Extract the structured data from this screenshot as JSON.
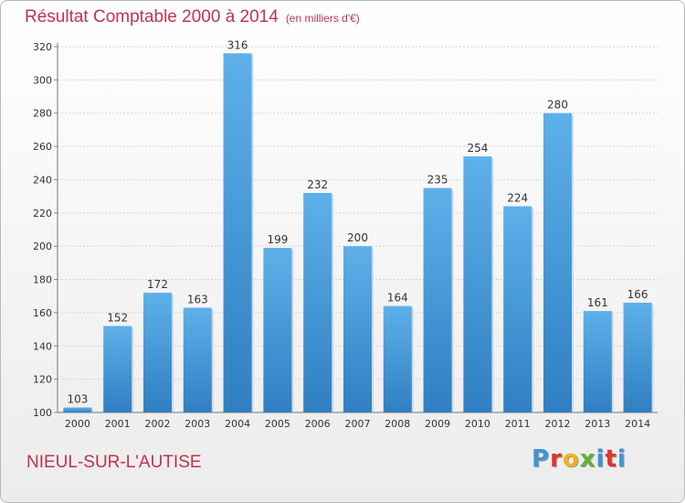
{
  "header": {
    "title": "Résultat Comptable 2000 à 2014",
    "unit": "(en milliers d'€)"
  },
  "footer": {
    "commune": "NIEUL-SUR-L'AUTISE",
    "logo": "Proxiti"
  },
  "colors": {
    "title": "#c0334d",
    "bar_top": "#5eb0ea",
    "bar_bottom": "#2f7fc2",
    "logo_letters": [
      "#3f95d6",
      "#e2332e",
      "#f2b11d",
      "#5fb13b",
      "#3f95d6",
      "#e2332e",
      "#3f95d6"
    ]
  },
  "chart_data": {
    "type": "bar",
    "title": "Résultat Comptable 2000 à 2014",
    "xlabel": "",
    "ylabel": "",
    "categories": [
      "2000",
      "2001",
      "2002",
      "2003",
      "2004",
      "2005",
      "2006",
      "2007",
      "2008",
      "2009",
      "2010",
      "2011",
      "2012",
      "2013",
      "2014"
    ],
    "values": [
      103,
      152,
      172,
      163,
      316,
      199,
      232,
      200,
      164,
      235,
      254,
      224,
      280,
      161,
      166
    ],
    "ylim": [
      100,
      320
    ],
    "yticks": [
      100,
      120,
      140,
      160,
      180,
      200,
      220,
      240,
      260,
      280,
      300,
      320
    ],
    "grid": true
  }
}
